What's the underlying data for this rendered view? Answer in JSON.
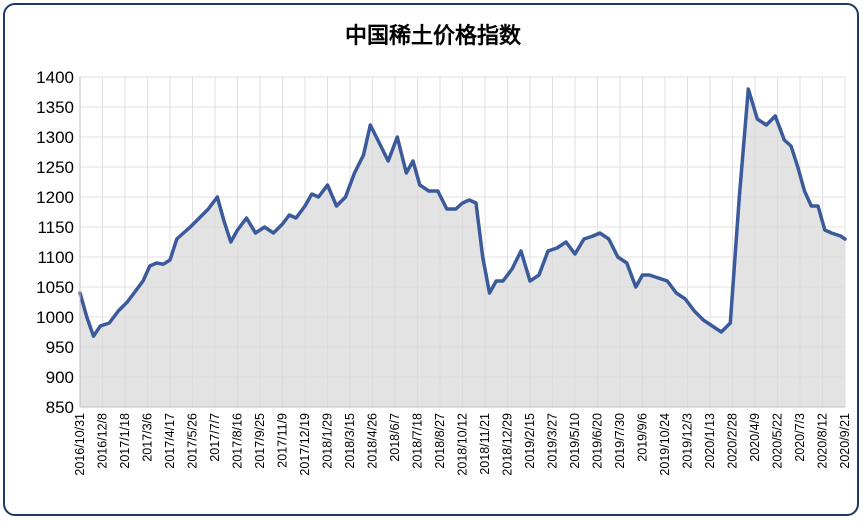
{
  "chart_data": {
    "type": "area",
    "title": "中国稀土价格指数",
    "xlabel": "",
    "ylabel": "",
    "ylim": [
      850,
      1400
    ],
    "yticks": [
      850,
      900,
      950,
      1000,
      1050,
      1100,
      1150,
      1200,
      1250,
      1300,
      1350,
      1400
    ],
    "x_tick_labels": [
      "2016/10/31",
      "2016/12/8",
      "2017/1/18",
      "2017/3/6",
      "2017/4/17",
      "2017/5/26",
      "2017/7/7",
      "2017/8/16",
      "2017/9/25",
      "2017/11/9",
      "2017/12/19",
      "2018/1/29",
      "2018/3/15",
      "2018/4/26",
      "2018/6/7",
      "2018/7/18",
      "2018/8/27",
      "2018/10/12",
      "2018/11/21",
      "2018/12/29",
      "2019/2/15",
      "2019/3/27",
      "2019/5/10",
      "2019/6/20",
      "2019/7/30",
      "2019/9/6",
      "2019/10/24",
      "2019/12/3",
      "2020/1/13",
      "2020/2/28",
      "2020/4/9",
      "2020/5/22",
      "2020/7/3",
      "2020/8/12",
      "2020/9/21"
    ],
    "grid": true,
    "legend": "none",
    "colors": {
      "line": "#3a5a9b",
      "fill": "#d9d9d9",
      "grid": "#e0e0e0",
      "border": "#1f3864"
    },
    "x": [
      0,
      0.3,
      0.6,
      0.9,
      1.3,
      1.7,
      2.1,
      2.5,
      2.8,
      3.1,
      3.4,
      3.7,
      4.0,
      4.3,
      4.6,
      4.9,
      5.3,
      5.7,
      6.1,
      6.4,
      6.7,
      7.0,
      7.4,
      7.8,
      8.2,
      8.6,
      9.0,
      9.3,
      9.6,
      10.0,
      10.3,
      10.6,
      11.0,
      11.4,
      11.8,
      12.2,
      12.6,
      12.9,
      13.3,
      13.7,
      14.1,
      14.5,
      14.8,
      15.1,
      15.5,
      15.9,
      16.3,
      16.7,
      17.0,
      17.3,
      17.6,
      17.9,
      18.2,
      18.5,
      18.8,
      19.2,
      19.6,
      20.0,
      20.4,
      20.8,
      21.2,
      21.6,
      22.0,
      22.4,
      22.8,
      23.1,
      23.5,
      23.9,
      24.3,
      24.7,
      25.0,
      25.3,
      25.7,
      26.1,
      26.5,
      26.9,
      27.3,
      27.7,
      28.1,
      28.5,
      28.9,
      29.3,
      29.7,
      30.1,
      30.5,
      30.9,
      31.3,
      31.6,
      31.9,
      32.2,
      32.5,
      32.8,
      33.1,
      33.4,
      33.8,
      34.0
    ],
    "values": [
      1040,
      1000,
      968,
      985,
      990,
      1010,
      1025,
      1045,
      1060,
      1085,
      1090,
      1088,
      1095,
      1130,
      1140,
      1150,
      1165,
      1180,
      1200,
      1160,
      1125,
      1145,
      1165,
      1140,
      1150,
      1140,
      1155,
      1170,
      1165,
      1185,
      1205,
      1200,
      1220,
      1185,
      1200,
      1240,
      1270,
      1320,
      1290,
      1260,
      1300,
      1240,
      1260,
      1220,
      1210,
      1210,
      1180,
      1180,
      1190,
      1195,
      1190,
      1100,
      1040,
      1060,
      1060,
      1080,
      1110,
      1060,
      1070,
      1110,
      1115,
      1125,
      1105,
      1130,
      1135,
      1140,
      1130,
      1100,
      1090,
      1050,
      1070,
      1070,
      1065,
      1060,
      1040,
      1030,
      1010,
      995,
      985,
      975,
      990,
      1200,
      1380,
      1330,
      1320,
      1335,
      1295,
      1285,
      1250,
      1210,
      1185,
      1185,
      1145,
      1140,
      1135,
      1130
    ],
    "series": [
      {
        "name": "",
        "values_ref": "values"
      }
    ]
  }
}
